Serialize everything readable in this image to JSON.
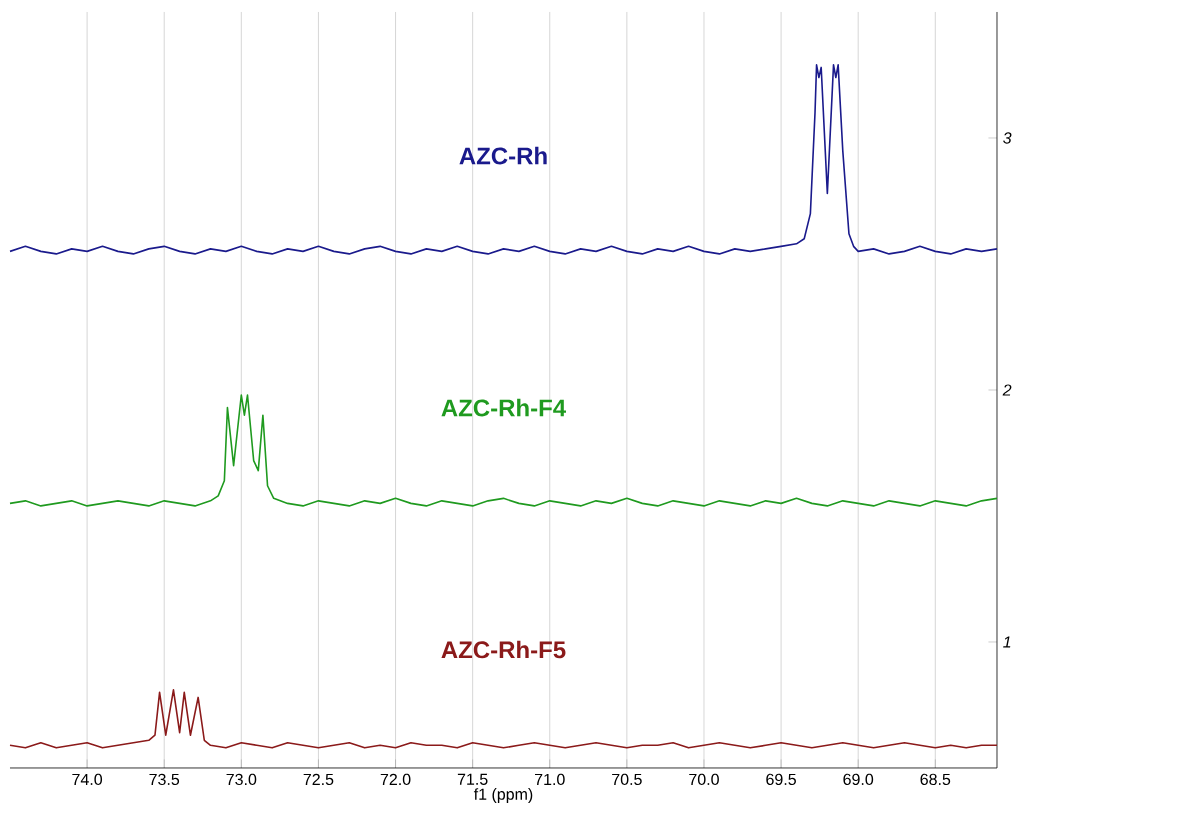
{
  "chart_data": {
    "type": "line",
    "xlabel": "f1 (ppm)",
    "xlim": [
      74.5,
      68.1
    ],
    "xticks": [
      {
        "value": 74,
        "label": "74.0"
      },
      73.5,
      {
        "value": 73,
        "label": "73.0"
      },
      72.5,
      {
        "value": 72,
        "label": "72.0"
      },
      71.5,
      {
        "value": 71,
        "label": "71.0"
      },
      70.5,
      {
        "value": 70,
        "label": "70.0"
      },
      69.5,
      {
        "value": 69,
        "label": "69.0"
      },
      68.5
    ],
    "ylim": [
      0.5,
      3.5
    ],
    "yticks": [
      1,
      2,
      3
    ],
    "grid": "x",
    "series": [
      {
        "name": "AZC-Rh-F5",
        "color": "#8b1a1a",
        "x": [
          74.5,
          74.4,
          74.3,
          74.2,
          74.1,
          74.0,
          73.9,
          73.8,
          73.7,
          73.6,
          73.56,
          73.53,
          73.49,
          73.44,
          73.4,
          73.37,
          73.33,
          73.28,
          73.24,
          73.2,
          73.1,
          73.0,
          72.9,
          72.8,
          72.7,
          72.6,
          72.5,
          72.4,
          72.3,
          72.2,
          72.1,
          72.0,
          71.9,
          71.8,
          71.7,
          71.6,
          71.5,
          71.4,
          71.3,
          71.2,
          71.1,
          71.0,
          70.9,
          70.8,
          70.7,
          70.6,
          70.5,
          70.4,
          70.3,
          70.2,
          70.1,
          70.0,
          69.9,
          69.8,
          69.7,
          69.6,
          69.5,
          69.4,
          69.3,
          69.2,
          69.1,
          69.0,
          68.9,
          68.8,
          68.7,
          68.6,
          68.5,
          68.4,
          68.3,
          68.2,
          68.1
        ],
        "values": [
          0.59,
          0.58,
          0.6,
          0.58,
          0.59,
          0.6,
          0.58,
          0.59,
          0.6,
          0.61,
          0.63,
          0.8,
          0.63,
          0.81,
          0.64,
          0.8,
          0.63,
          0.78,
          0.61,
          0.59,
          0.58,
          0.6,
          0.59,
          0.58,
          0.6,
          0.59,
          0.58,
          0.59,
          0.6,
          0.58,
          0.59,
          0.58,
          0.6,
          0.59,
          0.59,
          0.58,
          0.6,
          0.59,
          0.58,
          0.59,
          0.6,
          0.59,
          0.58,
          0.59,
          0.6,
          0.59,
          0.58,
          0.59,
          0.59,
          0.6,
          0.58,
          0.59,
          0.6,
          0.59,
          0.58,
          0.59,
          0.6,
          0.59,
          0.58,
          0.59,
          0.6,
          0.59,
          0.58,
          0.59,
          0.6,
          0.59,
          0.58,
          0.59,
          0.58,
          0.59,
          0.59
        ]
      },
      {
        "name": "AZC-Rh-F4",
        "color": "#1f9a1f",
        "x": [
          74.5,
          74.4,
          74.3,
          74.2,
          74.1,
          74.0,
          73.9,
          73.8,
          73.7,
          73.6,
          73.5,
          73.4,
          73.3,
          73.2,
          73.15,
          73.11,
          73.09,
          73.05,
          73.0,
          72.98,
          72.96,
          72.92,
          72.89,
          72.86,
          72.83,
          72.79,
          72.7,
          72.6,
          72.5,
          72.4,
          72.3,
          72.2,
          72.1,
          72.0,
          71.9,
          71.8,
          71.7,
          71.6,
          71.5,
          71.4,
          71.3,
          71.2,
          71.1,
          71.0,
          70.9,
          70.8,
          70.7,
          70.6,
          70.5,
          70.4,
          70.3,
          70.2,
          70.1,
          70.0,
          69.9,
          69.8,
          69.7,
          69.6,
          69.5,
          69.4,
          69.3,
          69.2,
          69.1,
          69.0,
          68.9,
          68.8,
          68.7,
          68.6,
          68.5,
          68.4,
          68.3,
          68.2,
          68.1
        ],
        "values": [
          1.55,
          1.56,
          1.54,
          1.55,
          1.56,
          1.54,
          1.55,
          1.56,
          1.55,
          1.54,
          1.56,
          1.55,
          1.54,
          1.56,
          1.58,
          1.64,
          1.93,
          1.7,
          1.98,
          1.9,
          1.98,
          1.72,
          1.68,
          1.9,
          1.62,
          1.57,
          1.55,
          1.54,
          1.56,
          1.55,
          1.54,
          1.56,
          1.55,
          1.57,
          1.55,
          1.54,
          1.56,
          1.55,
          1.54,
          1.56,
          1.57,
          1.55,
          1.54,
          1.56,
          1.55,
          1.54,
          1.56,
          1.55,
          1.57,
          1.55,
          1.54,
          1.56,
          1.55,
          1.54,
          1.56,
          1.55,
          1.54,
          1.56,
          1.55,
          1.57,
          1.55,
          1.54,
          1.56,
          1.55,
          1.54,
          1.56,
          1.55,
          1.54,
          1.56,
          1.55,
          1.54,
          1.56,
          1.57
        ]
      },
      {
        "name": "AZC-Rh",
        "color": "#1a1a8c",
        "x": [
          74.5,
          74.4,
          74.3,
          74.2,
          74.1,
          74.0,
          73.9,
          73.8,
          73.7,
          73.6,
          73.5,
          73.4,
          73.3,
          73.2,
          73.1,
          73.0,
          72.9,
          72.8,
          72.7,
          72.6,
          72.5,
          72.4,
          72.3,
          72.2,
          72.1,
          72.0,
          71.9,
          71.8,
          71.7,
          71.6,
          71.5,
          71.4,
          71.3,
          71.2,
          71.1,
          71.0,
          70.9,
          70.8,
          70.7,
          70.6,
          70.5,
          70.4,
          70.3,
          70.2,
          70.1,
          70.0,
          69.9,
          69.8,
          69.7,
          69.6,
          69.5,
          69.4,
          69.35,
          69.31,
          69.28,
          69.27,
          69.255,
          69.24,
          69.2,
          69.16,
          69.145,
          69.13,
          69.1,
          69.06,
          69.03,
          69.0,
          68.9,
          68.8,
          68.7,
          68.6,
          68.5,
          68.4,
          68.3,
          68.2,
          68.1
        ],
        "values": [
          2.55,
          2.57,
          2.55,
          2.54,
          2.56,
          2.55,
          2.57,
          2.55,
          2.54,
          2.56,
          2.57,
          2.55,
          2.54,
          2.56,
          2.55,
          2.57,
          2.55,
          2.54,
          2.56,
          2.55,
          2.57,
          2.55,
          2.54,
          2.56,
          2.57,
          2.55,
          2.54,
          2.56,
          2.55,
          2.57,
          2.55,
          2.54,
          2.56,
          2.55,
          2.57,
          2.55,
          2.54,
          2.56,
          2.55,
          2.57,
          2.55,
          2.54,
          2.56,
          2.55,
          2.57,
          2.55,
          2.54,
          2.56,
          2.55,
          2.56,
          2.57,
          2.58,
          2.6,
          2.7,
          3.1,
          3.29,
          3.24,
          3.28,
          2.78,
          3.29,
          3.24,
          3.29,
          2.95,
          2.62,
          2.57,
          2.55,
          2.56,
          2.54,
          2.55,
          2.57,
          2.55,
          2.54,
          2.56,
          2.55,
          2.56
        ]
      }
    ]
  }
}
